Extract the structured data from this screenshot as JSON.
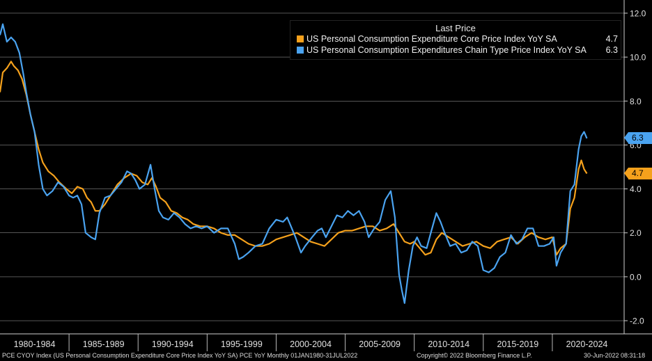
{
  "chart_data": {
    "type": "line",
    "title": "Last Price",
    "ylim": [
      -2.6,
      12.6
    ],
    "xlim": [
      1980.0,
      2025.2
    ],
    "yticks": [
      12.0,
      10.0,
      8.0,
      6.0,
      4.0,
      2.0,
      0.0,
      -2.0
    ],
    "ytick_labels": [
      "12.0",
      "10.0",
      "8.0",
      "6.0",
      "4.0",
      "2.0",
      "0.0",
      "-2.0"
    ],
    "period_labels": [
      "1980-1984",
      "1985-1989",
      "1990-1994",
      "1995-1999",
      "2000-2004",
      "2005-2009",
      "2010-2014",
      "2015-2019",
      "2020-2024"
    ],
    "period_starts": [
      1980,
      1985,
      1990,
      1995,
      2000,
      2005,
      2010,
      2015,
      2020
    ],
    "period_end": 2025,
    "series": [
      {
        "name": "US Personal Consumption Expenditure Core Price Index YoY SA",
        "last_value": "4.7",
        "color": "#f5a11c",
        "points": [
          [
            1980.0,
            8.4
          ],
          [
            1980.2,
            9.3
          ],
          [
            1980.5,
            9.5
          ],
          [
            1980.8,
            9.8
          ],
          [
            1981.0,
            9.6
          ],
          [
            1981.3,
            9.4
          ],
          [
            1981.6,
            9.0
          ],
          [
            1981.9,
            8.3
          ],
          [
            1982.2,
            7.4
          ],
          [
            1982.5,
            6.6
          ],
          [
            1982.8,
            5.8
          ],
          [
            1983.1,
            5.2
          ],
          [
            1983.5,
            4.8
          ],
          [
            1983.9,
            4.6
          ],
          [
            1984.3,
            4.3
          ],
          [
            1984.8,
            4.0
          ],
          [
            1985.2,
            3.8
          ],
          [
            1985.6,
            4.1
          ],
          [
            1986.0,
            4.0
          ],
          [
            1986.3,
            3.6
          ],
          [
            1986.6,
            3.4
          ],
          [
            1986.9,
            3.0
          ],
          [
            1987.2,
            3.0
          ],
          [
            1987.6,
            3.3
          ],
          [
            1988.0,
            3.7
          ],
          [
            1988.5,
            4.2
          ],
          [
            1989.0,
            4.5
          ],
          [
            1989.5,
            4.7
          ],
          [
            1989.9,
            4.6
          ],
          [
            1990.3,
            4.3
          ],
          [
            1990.7,
            4.2
          ],
          [
            1991.0,
            4.5
          ],
          [
            1991.3,
            4.1
          ],
          [
            1991.6,
            3.6
          ],
          [
            1992.0,
            3.4
          ],
          [
            1992.4,
            3.0
          ],
          [
            1992.8,
            2.9
          ],
          [
            1993.2,
            2.7
          ],
          [
            1993.6,
            2.6
          ],
          [
            1994.0,
            2.4
          ],
          [
            1994.5,
            2.3
          ],
          [
            1995.0,
            2.3
          ],
          [
            1995.5,
            2.2
          ],
          [
            1996.0,
            2.0
          ],
          [
            1996.5,
            1.9
          ],
          [
            1997.0,
            1.9
          ],
          [
            1997.5,
            1.7
          ],
          [
            1998.0,
            1.5
          ],
          [
            1998.5,
            1.4
          ],
          [
            1999.0,
            1.4
          ],
          [
            1999.5,
            1.5
          ],
          [
            2000.0,
            1.7
          ],
          [
            2000.5,
            1.8
          ],
          [
            2001.0,
            1.9
          ],
          [
            2001.5,
            2.0
          ],
          [
            2002.0,
            1.8
          ],
          [
            2002.5,
            1.6
          ],
          [
            2003.0,
            1.5
          ],
          [
            2003.5,
            1.4
          ],
          [
            2004.0,
            1.7
          ],
          [
            2004.5,
            2.0
          ],
          [
            2005.0,
            2.1
          ],
          [
            2005.5,
            2.1
          ],
          [
            2006.0,
            2.2
          ],
          [
            2006.5,
            2.3
          ],
          [
            2007.0,
            2.3
          ],
          [
            2007.5,
            2.1
          ],
          [
            2008.0,
            2.2
          ],
          [
            2008.5,
            2.4
          ],
          [
            2008.9,
            2.0
          ],
          [
            2009.3,
            1.6
          ],
          [
            2009.7,
            1.5
          ],
          [
            2010.0,
            1.6
          ],
          [
            2010.4,
            1.3
          ],
          [
            2010.8,
            1.0
          ],
          [
            2011.2,
            1.1
          ],
          [
            2011.6,
            1.7
          ],
          [
            2012.0,
            2.0
          ],
          [
            2012.5,
            1.8
          ],
          [
            2013.0,
            1.6
          ],
          [
            2013.5,
            1.4
          ],
          [
            2014.0,
            1.5
          ],
          [
            2014.5,
            1.6
          ],
          [
            2015.0,
            1.4
          ],
          [
            2015.5,
            1.3
          ],
          [
            2016.0,
            1.6
          ],
          [
            2016.5,
            1.7
          ],
          [
            2017.0,
            1.8
          ],
          [
            2017.5,
            1.5
          ],
          [
            2018.0,
            1.8
          ],
          [
            2018.5,
            2.0
          ],
          [
            2019.0,
            1.8
          ],
          [
            2019.5,
            1.7
          ],
          [
            2020.0,
            1.8
          ],
          [
            2020.3,
            1.0
          ],
          [
            2020.6,
            1.3
          ],
          [
            2021.0,
            1.5
          ],
          [
            2021.3,
            3.1
          ],
          [
            2021.6,
            3.6
          ],
          [
            2021.9,
            4.9
          ],
          [
            2022.1,
            5.3
          ],
          [
            2022.3,
            4.9
          ],
          [
            2022.5,
            4.7
          ]
        ]
      },
      {
        "name": "US Personal Consumption Expenditures Chain Type Price Index YoY SA",
        "last_value": "6.3",
        "color": "#4aa3f0",
        "points": [
          [
            1980.0,
            11.0
          ],
          [
            1980.2,
            11.5
          ],
          [
            1980.5,
            10.7
          ],
          [
            1980.8,
            10.9
          ],
          [
            1981.1,
            10.7
          ],
          [
            1981.4,
            10.2
          ],
          [
            1981.7,
            9.2
          ],
          [
            1981.9,
            8.4
          ],
          [
            1982.2,
            7.4
          ],
          [
            1982.5,
            6.6
          ],
          [
            1982.8,
            5.1
          ],
          [
            1983.1,
            4.0
          ],
          [
            1983.4,
            3.7
          ],
          [
            1983.8,
            3.9
          ],
          [
            1984.2,
            4.3
          ],
          [
            1984.6,
            4.1
          ],
          [
            1985.0,
            3.7
          ],
          [
            1985.3,
            3.6
          ],
          [
            1985.6,
            3.7
          ],
          [
            1985.9,
            3.3
          ],
          [
            1986.2,
            2.0
          ],
          [
            1986.6,
            1.8
          ],
          [
            1986.9,
            1.7
          ],
          [
            1987.2,
            2.9
          ],
          [
            1987.6,
            3.6
          ],
          [
            1988.0,
            3.7
          ],
          [
            1988.4,
            4.0
          ],
          [
            1988.8,
            4.3
          ],
          [
            1989.2,
            4.8
          ],
          [
            1989.5,
            4.7
          ],
          [
            1989.8,
            4.4
          ],
          [
            1990.1,
            4.0
          ],
          [
            1990.5,
            4.2
          ],
          [
            1990.9,
            5.1
          ],
          [
            1991.2,
            4.0
          ],
          [
            1991.5,
            3.0
          ],
          [
            1991.8,
            2.7
          ],
          [
            1992.2,
            2.6
          ],
          [
            1992.6,
            2.9
          ],
          [
            1993.0,
            2.7
          ],
          [
            1993.4,
            2.4
          ],
          [
            1993.8,
            2.2
          ],
          [
            1994.2,
            2.3
          ],
          [
            1994.6,
            2.2
          ],
          [
            1995.0,
            2.3
          ],
          [
            1995.5,
            2.0
          ],
          [
            1996.0,
            2.2
          ],
          [
            1996.5,
            2.2
          ],
          [
            1997.0,
            1.5
          ],
          [
            1997.3,
            0.8
          ],
          [
            1997.6,
            0.9
          ],
          [
            1998.0,
            1.1
          ],
          [
            1998.5,
            1.4
          ],
          [
            1999.0,
            1.5
          ],
          [
            1999.5,
            2.2
          ],
          [
            2000.0,
            2.6
          ],
          [
            2000.5,
            2.5
          ],
          [
            2000.8,
            2.7
          ],
          [
            2001.0,
            2.4
          ],
          [
            2001.4,
            1.8
          ],
          [
            2001.8,
            1.1
          ],
          [
            2002.1,
            1.4
          ],
          [
            2002.6,
            1.8
          ],
          [
            2003.0,
            2.1
          ],
          [
            2003.3,
            2.2
          ],
          [
            2003.6,
            1.8
          ],
          [
            2004.0,
            2.3
          ],
          [
            2004.4,
            2.8
          ],
          [
            2004.8,
            2.7
          ],
          [
            2005.2,
            3.0
          ],
          [
            2005.6,
            2.8
          ],
          [
            2006.0,
            3.0
          ],
          [
            2006.4,
            2.5
          ],
          [
            2006.7,
            1.8
          ],
          [
            2007.1,
            2.2
          ],
          [
            2007.5,
            2.5
          ],
          [
            2007.9,
            3.5
          ],
          [
            2008.3,
            3.9
          ],
          [
            2008.6,
            2.7
          ],
          [
            2008.9,
            0.1
          ],
          [
            2009.1,
            -0.6
          ],
          [
            2009.3,
            -1.2
          ],
          [
            2009.6,
            0.3
          ],
          [
            2009.9,
            1.4
          ],
          [
            2010.2,
            1.8
          ],
          [
            2010.5,
            1.4
          ],
          [
            2010.9,
            1.3
          ],
          [
            2011.2,
            2.0
          ],
          [
            2011.6,
            2.9
          ],
          [
            2011.9,
            2.5
          ],
          [
            2012.2,
            2.0
          ],
          [
            2012.6,
            1.4
          ],
          [
            2013.0,
            1.5
          ],
          [
            2013.4,
            1.1
          ],
          [
            2013.8,
            1.2
          ],
          [
            2014.2,
            1.6
          ],
          [
            2014.6,
            1.4
          ],
          [
            2015.0,
            0.3
          ],
          [
            2015.4,
            0.2
          ],
          [
            2015.8,
            0.4
          ],
          [
            2016.2,
            0.9
          ],
          [
            2016.6,
            1.1
          ],
          [
            2017.0,
            1.9
          ],
          [
            2017.4,
            1.5
          ],
          [
            2017.8,
            1.7
          ],
          [
            2018.2,
            2.2
          ],
          [
            2018.6,
            2.2
          ],
          [
            2019.0,
            1.4
          ],
          [
            2019.4,
            1.4
          ],
          [
            2019.8,
            1.5
          ],
          [
            2020.1,
            1.8
          ],
          [
            2020.3,
            0.5
          ],
          [
            2020.6,
            1.1
          ],
          [
            2021.0,
            1.5
          ],
          [
            2021.3,
            3.9
          ],
          [
            2021.6,
            4.2
          ],
          [
            2021.9,
            5.8
          ],
          [
            2022.1,
            6.4
          ],
          [
            2022.3,
            6.6
          ],
          [
            2022.5,
            6.3
          ]
        ]
      }
    ]
  },
  "legend": {
    "title": "Last Price",
    "items": [
      {
        "label": "US Personal Consumption Expenditure Core Price Index YoY SA",
        "value": "4.7",
        "color": "#f5a11c"
      },
      {
        "label": "US Personal Consumption Expenditures Chain Type Price Index YoY SA",
        "value": "6.3",
        "color": "#4aa3f0"
      }
    ]
  },
  "badges": {
    "pce": {
      "text": "6.3",
      "color": "#4aa3f0"
    },
    "core": {
      "text": "4.7",
      "color": "#f5a11c"
    }
  },
  "footer": {
    "left": "PCE CYOY Index (US Personal Consumption Expenditure Core Price Index YoY SA) PCE YoY  Monthly 01JAN1980-31JUL2022",
    "center": "Copyright© 2022 Bloomberg Finance L.P.",
    "right": "30-Jun-2022 08:31:18"
  }
}
